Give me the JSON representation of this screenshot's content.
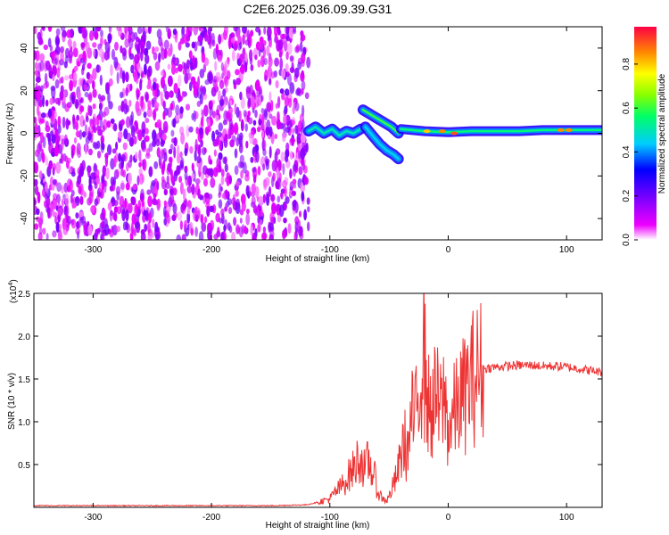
{
  "figure_title": "C2E6.2025.036.09.39.G31",
  "chart_data": [
    {
      "type": "heatmap",
      "xlabel": "Height of straight line (km)",
      "ylabel": "Frequency (Hz)",
      "xlim": [
        -350,
        130
      ],
      "ylim": [
        -50,
        50
      ],
      "xticks": [
        -300,
        -200,
        -100,
        0,
        100
      ],
      "yticks": [
        -40,
        -20,
        0,
        20,
        40
      ],
      "colorbar": {
        "label": "Normalized spectral amplitude",
        "range": [
          0,
          0.97
        ],
        "ticks": [
          "0.0",
          "0.2",
          "0.4",
          "0.6",
          "0.8"
        ],
        "tick_values": [
          0.0,
          0.2,
          0.4,
          0.6,
          0.8
        ],
        "colors": [
          "#ffffff",
          "#ee00ff",
          "#7700ff",
          "#0000ff",
          "#00ccff",
          "#00ff66",
          "#88ff00",
          "#ffff00",
          "#ff8800",
          "#ff0044"
        ]
      },
      "noise_region": {
        "x": [
          -350,
          -118
        ],
        "y": [
          -50,
          50
        ],
        "level": 0.15
      },
      "tone_tracks": [
        {
          "x": [
            -118,
            -112,
            -105,
            -98,
            -92,
            -86,
            -80,
            -74
          ],
          "y": [
            1,
            3,
            0,
            2,
            -1,
            1,
            0,
            2
          ],
          "level": 0.5
        },
        {
          "x": [
            -72,
            -66,
            -60,
            -54,
            -48,
            -42
          ],
          "y": [
            11,
            9,
            7,
            5,
            3,
            0
          ],
          "level": 0.6
        },
        {
          "x": [
            -70,
            -64,
            -58,
            -52,
            -46,
            -42
          ],
          "y": [
            3,
            -1,
            -5,
            -8,
            -10,
            -12
          ],
          "level": 0.45
        },
        {
          "x": [
            -40,
            -20,
            0,
            20,
            40,
            60,
            80,
            100,
            130
          ],
          "y": [
            2,
            1,
            0.5,
            1,
            1,
            1,
            1.5,
            1.5,
            1.5
          ],
          "level": 0.55
        }
      ],
      "hot_spots": [
        {
          "x": -18,
          "y": 1,
          "level": 0.8
        },
        {
          "x": -5,
          "y": 1,
          "level": 0.85
        },
        {
          "x": 5,
          "y": 0,
          "level": 0.9
        },
        {
          "x": 95,
          "y": 1.5,
          "level": 0.85
        },
        {
          "x": 102,
          "y": 1.5,
          "level": 0.85
        }
      ]
    },
    {
      "type": "line",
      "xlabel": "Height of straight line (km)",
      "ylabel": "SNR (10 * v/v)",
      "yscale_label": "(x10",
      "yscale_exp": "4",
      "yscale_close": ")",
      "xlim": [
        -350,
        130
      ],
      "ylim": [
        0,
        2.5
      ],
      "xticks": [
        -300,
        -200,
        -100,
        0,
        100
      ],
      "yticks": [
        0.5,
        1.0,
        1.5,
        2.0,
        2.5
      ],
      "color": "#ee3333",
      "series": [
        {
          "x": [
            -350,
            -300,
            -250,
            -200,
            -150,
            -120,
            -110,
            -100,
            -95,
            -90,
            -85,
            -80,
            -75,
            -72,
            -70,
            -68,
            -65,
            -62,
            -60,
            -58,
            -55,
            -52,
            -50,
            -48,
            -45,
            -42,
            -40,
            -37,
            -35,
            -32,
            -30,
            -28,
            -26,
            -24,
            -22,
            -21,
            -20,
            -19,
            -18,
            -17,
            -15,
            -12,
            -10,
            -8,
            -5,
            -3,
            0,
            5,
            10,
            15,
            20,
            25,
            30,
            40,
            50,
            60,
            70,
            80,
            90,
            100,
            110,
            120,
            130
          ],
          "y": [
            0.02,
            0.02,
            0.02,
            0.02,
            0.02,
            0.03,
            0.06,
            0.1,
            0.18,
            0.25,
            0.35,
            0.45,
            0.6,
            0.5,
            0.4,
            0.55,
            0.45,
            0.35,
            0.2,
            0.15,
            0.1,
            0.08,
            0.12,
            0.2,
            0.3,
            0.45,
            0.6,
            0.8,
            0.6,
            0.9,
            1.1,
            1.0,
            1.2,
            1.5,
            1.8,
            2.3,
            1.5,
            1.7,
            1.4,
            1.2,
            1.1,
            1.2,
            1.35,
            1.1,
            1.2,
            1.3,
            0.9,
            1.1,
            1.25,
            1.35,
            1.5,
            1.58,
            1.62,
            1.64,
            1.65,
            1.66,
            1.66,
            1.65,
            1.65,
            1.64,
            1.62,
            1.6,
            1.58
          ]
        }
      ]
    }
  ]
}
